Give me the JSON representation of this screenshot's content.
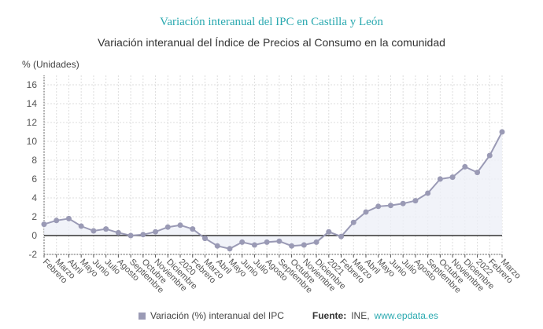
{
  "title": "Variación interanual del IPC en Castilla y León",
  "subtitle": "Variación interanual del Índice de Precios al Consumo en la comunidad",
  "legend_label": "Variación (%) interanual del IPC",
  "source_label": "Fuente:",
  "source_text": "INE,",
  "source_link": "www.epdata.es",
  "chart_data": {
    "type": "area",
    "ylabel": "% (Unidades)",
    "ylim": [
      -2,
      17
    ],
    "yticks": [
      -2,
      0,
      2,
      4,
      6,
      8,
      10,
      12,
      14,
      16
    ],
    "grid": true,
    "legend_placement": "bottom",
    "colors": {
      "line": "#9a9ab5",
      "fill": "#eef0f8",
      "zero": "#333333",
      "title": "#2aa9b0"
    },
    "categories": [
      "Febrero",
      "Marzo",
      "Abril",
      "Mayo",
      "Junio",
      "Julio",
      "Agosto",
      "Septiembre",
      "Octubre",
      "Noviembre",
      "Diciembre",
      "2020",
      "Febrero",
      "Marzo",
      "Abril",
      "Mayo",
      "Junio",
      "Julio",
      "Agosto",
      "Septiembre",
      "Octubre",
      "Noviembre",
      "Diciembre",
      "2021",
      "Febrero",
      "Marzo",
      "Abril",
      "Mayo",
      "Junio",
      "Julio",
      "Agosto",
      "Septiembre",
      "Octubre",
      "Noviembre",
      "Diciembre",
      "2022",
      "Febrero",
      "Marzo"
    ],
    "series": [
      {
        "name": "Variación (%) interanual del IPC",
        "values": [
          1.2,
          1.6,
          1.8,
          1.0,
          0.5,
          0.7,
          0.3,
          0.0,
          0.1,
          0.4,
          0.9,
          1.1,
          0.7,
          -0.3,
          -1.1,
          -1.4,
          -0.7,
          -1.0,
          -0.7,
          -0.6,
          -1.1,
          -1.0,
          -0.7,
          0.4,
          -0.1,
          1.4,
          2.5,
          3.1,
          3.2,
          3.4,
          3.7,
          4.5,
          6.0,
          6.2,
          7.3,
          6.7,
          8.5,
          11.0
        ]
      }
    ]
  }
}
